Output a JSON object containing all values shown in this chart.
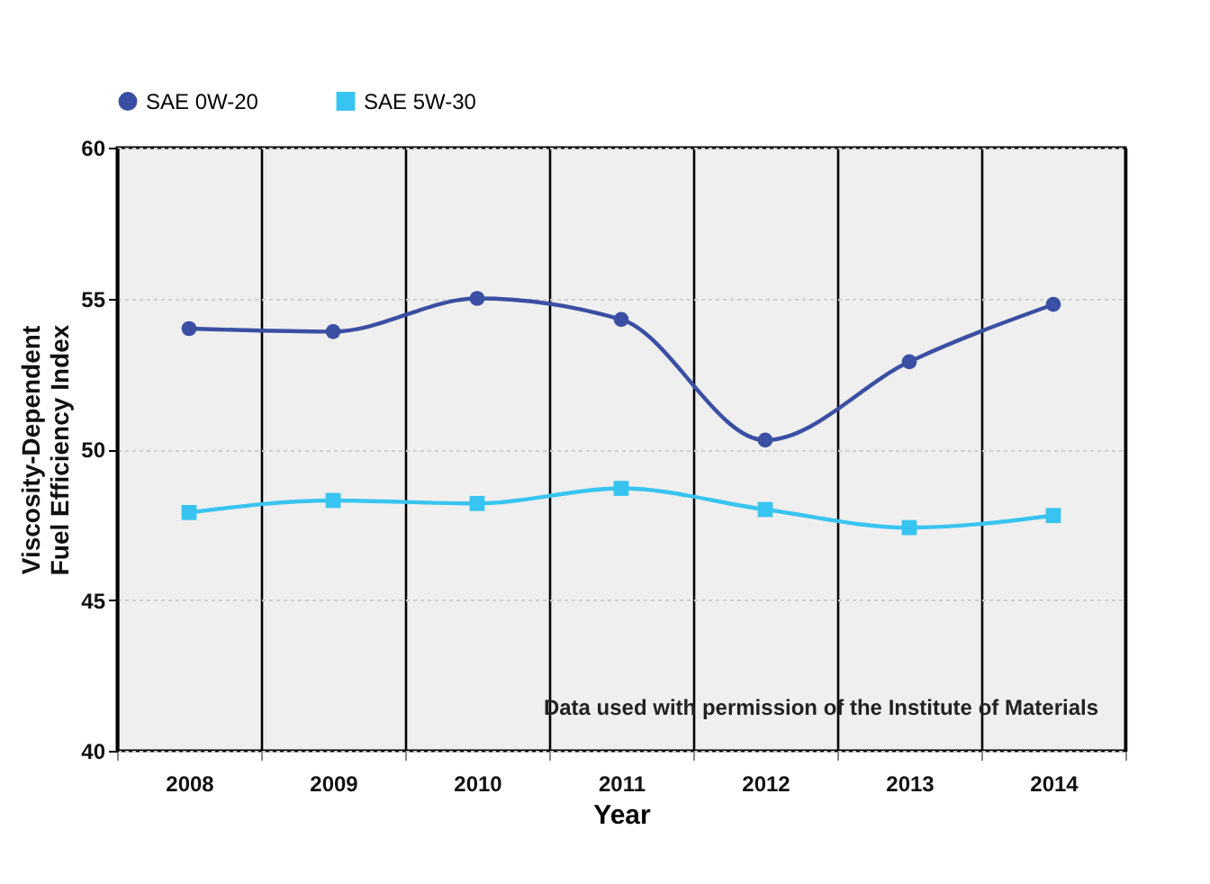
{
  "chart_data": {
    "type": "line",
    "categories": [
      "2008",
      "2009",
      "2010",
      "2011",
      "2012",
      "2013",
      "2014"
    ],
    "series": [
      {
        "name": "SAE 0W-20",
        "color": "#3a4fa3",
        "marker": "circle",
        "values": [
          54.0,
          53.9,
          55.0,
          54.3,
          50.3,
          52.9,
          54.8
        ]
      },
      {
        "name": "SAE 5W-30",
        "color": "#38c4f0",
        "marker": "square",
        "values": [
          47.9,
          48.3,
          48.2,
          48.7,
          48.0,
          47.4,
          47.8
        ]
      }
    ],
    "xlabel": "Year",
    "ylabel": "Viscosity-Dependent Fuel Efficiency Index",
    "ylim": [
      40,
      60
    ],
    "yticks": [
      40,
      45,
      50,
      55,
      60
    ],
    "grid": true,
    "legend": "top",
    "line_style": "solid",
    "annotations": [
      "Data used with permission of the Institute of Materials"
    ]
  }
}
